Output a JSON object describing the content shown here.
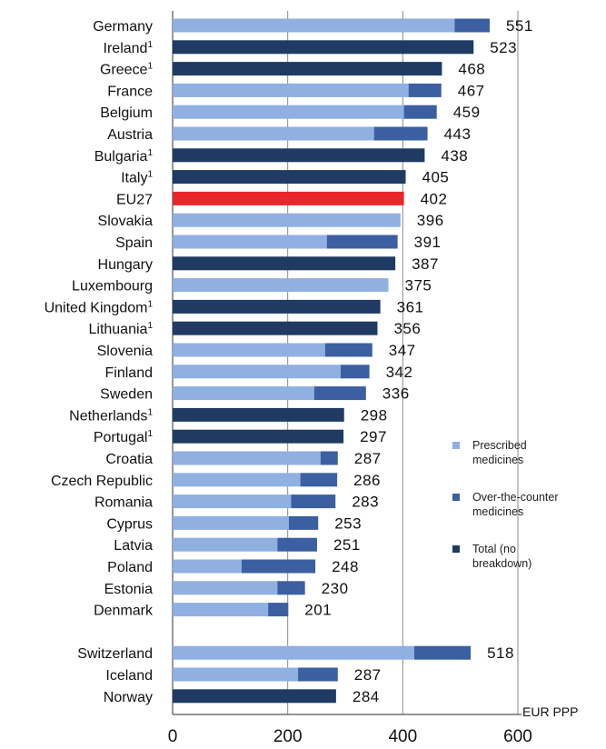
{
  "chart_data": {
    "type": "bar",
    "orientation": "horizontal",
    "stacked": true,
    "unit_label": "EUR PPP",
    "xlim": [
      0,
      600
    ],
    "x_ticks": [
      "0",
      "200",
      "400",
      "600"
    ],
    "grid": true,
    "legend_position": "right",
    "colors": {
      "prescribed": "#8fb0e0",
      "otc": "#3b5fa0",
      "total": "#1f3b63",
      "eu": "#e8262b"
    },
    "legend": [
      {
        "key": "prescribed",
        "line1": "Prescribed",
        "line2": "medicines"
      },
      {
        "key": "otc",
        "line1": "Over-the-counter",
        "line2": "medicines"
      },
      {
        "key": "total",
        "line1": "Total (no",
        "line2": "breakdown)"
      }
    ],
    "categories": [
      {
        "name": "Germany",
        "sup": "",
        "kind": "split",
        "prescribed": 490,
        "total": 551,
        "label": "551"
      },
      {
        "name": "Ireland",
        "sup": "1",
        "kind": "total",
        "total": 523,
        "label": "523"
      },
      {
        "name": "Greece",
        "sup": "1",
        "kind": "total",
        "total": 468,
        "label": "468"
      },
      {
        "name": "France",
        "sup": "",
        "kind": "split",
        "prescribed": 410,
        "total": 467,
        "label": "467"
      },
      {
        "name": "Belgium",
        "sup": "",
        "kind": "split",
        "prescribed": 402,
        "total": 459,
        "label": "459"
      },
      {
        "name": "Austria",
        "sup": "",
        "kind": "split",
        "prescribed": 350,
        "total": 443,
        "label": "443"
      },
      {
        "name": "Bulgaria",
        "sup": "1",
        "kind": "total",
        "total": 438,
        "label": "438"
      },
      {
        "name": "Italy",
        "sup": "1",
        "kind": "total",
        "total": 405,
        "label": "405"
      },
      {
        "name": "EU27",
        "sup": "",
        "kind": "eu",
        "total": 402,
        "label": "402"
      },
      {
        "name": "Slovakia",
        "sup": "",
        "kind": "split",
        "prescribed": 396,
        "total": 396,
        "label": "396"
      },
      {
        "name": "Spain",
        "sup": "",
        "kind": "split",
        "prescribed": 268,
        "total": 391,
        "label": "391"
      },
      {
        "name": "Hungary",
        "sup": "",
        "kind": "total",
        "total": 387,
        "label": "387"
      },
      {
        "name": "Luxembourg",
        "sup": "",
        "kind": "split",
        "prescribed": 375,
        "total": 375,
        "label": "375"
      },
      {
        "name": "United Kingdom",
        "sup": "1",
        "kind": "total",
        "total": 361,
        "label": "361"
      },
      {
        "name": "Lithuania",
        "sup": "1",
        "kind": "total",
        "total": 356,
        "label": "356"
      },
      {
        "name": "Slovenia",
        "sup": "",
        "kind": "split",
        "prescribed": 265,
        "total": 347,
        "label": "347"
      },
      {
        "name": "Finland",
        "sup": "",
        "kind": "split",
        "prescribed": 292,
        "total": 342,
        "label": "342"
      },
      {
        "name": "Sweden",
        "sup": "",
        "kind": "split",
        "prescribed": 246,
        "total": 336,
        "label": "336"
      },
      {
        "name": "Netherlands",
        "sup": "1",
        "kind": "total",
        "total": 298,
        "label": "298"
      },
      {
        "name": "Portugal",
        "sup": "1",
        "kind": "total",
        "total": 297,
        "label": "297"
      },
      {
        "name": "Croatia",
        "sup": "",
        "kind": "split",
        "prescribed": 257,
        "total": 287,
        "label": "287"
      },
      {
        "name": "Czech Republic",
        "sup": "",
        "kind": "split",
        "prescribed": 222,
        "total": 286,
        "label": "286"
      },
      {
        "name": "Romania",
        "sup": "",
        "kind": "split",
        "prescribed": 206,
        "total": 283,
        "label": "283"
      },
      {
        "name": "Cyprus",
        "sup": "",
        "kind": "split",
        "prescribed": 202,
        "total": 253,
        "label": "253"
      },
      {
        "name": "Latvia",
        "sup": "",
        "kind": "split",
        "prescribed": 182,
        "total": 251,
        "label": "251"
      },
      {
        "name": "Poland",
        "sup": "",
        "kind": "split",
        "prescribed": 120,
        "total": 248,
        "label": "248"
      },
      {
        "name": "Estonia",
        "sup": "",
        "kind": "split",
        "prescribed": 182,
        "total": 230,
        "label": "230"
      },
      {
        "name": "Denmark",
        "sup": "",
        "kind": "split",
        "prescribed": 166,
        "total": 201,
        "label": "201"
      },
      {
        "name": "",
        "sup": "",
        "kind": "gap"
      },
      {
        "name": "Switzerland",
        "sup": "",
        "kind": "split",
        "prescribed": 420,
        "total": 518,
        "label": "518"
      },
      {
        "name": "Iceland",
        "sup": "",
        "kind": "split",
        "prescribed": 218,
        "total": 287,
        "label": "287"
      },
      {
        "name": "Norway",
        "sup": "",
        "kind": "total",
        "total": 284,
        "label": "284"
      }
    ]
  }
}
